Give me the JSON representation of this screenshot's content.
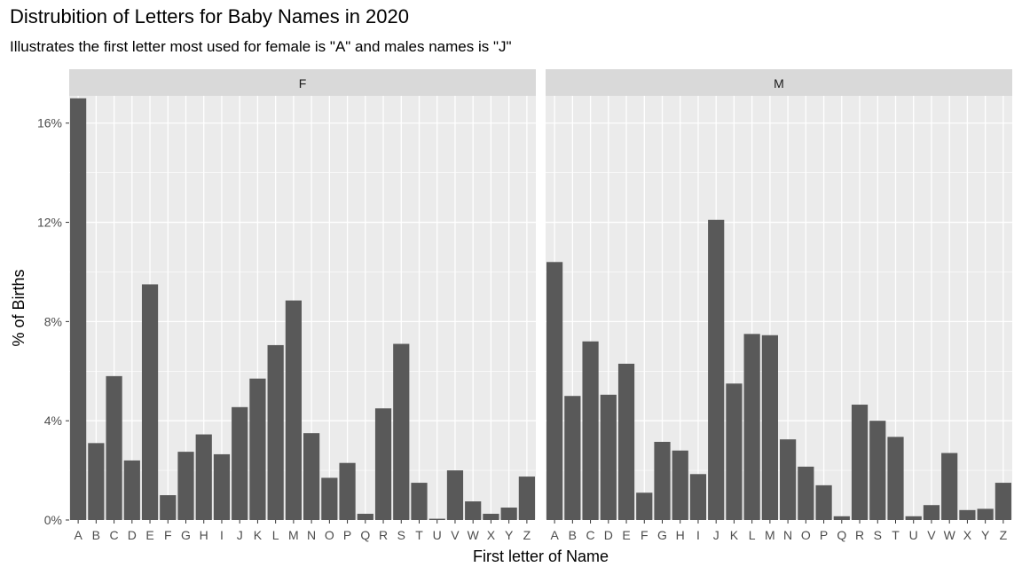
{
  "chart_data": {
    "type": "bar",
    "title": "Distrubition of Letters for Baby Names in 2020",
    "subtitle": "Illustrates the first letter most used for female is \"A\" and males names is \"J\"",
    "xlabel": "First letter of Name",
    "ylabel": "% of Births",
    "ylim": [
      0,
      17.1
    ],
    "y_ticks": [
      0,
      4,
      8,
      12,
      16
    ],
    "y_tick_labels": [
      "0%",
      "4%",
      "8%",
      "12%",
      "16%"
    ],
    "grid": true,
    "categories": [
      "A",
      "B",
      "C",
      "D",
      "E",
      "F",
      "G",
      "H",
      "I",
      "J",
      "K",
      "L",
      "M",
      "N",
      "O",
      "P",
      "Q",
      "R",
      "S",
      "T",
      "U",
      "V",
      "W",
      "X",
      "Y",
      "Z"
    ],
    "facets": [
      {
        "label": "F",
        "values": [
          17.0,
          3.1,
          5.8,
          2.4,
          9.5,
          1.0,
          2.75,
          3.45,
          2.65,
          4.55,
          5.7,
          7.05,
          8.85,
          3.5,
          1.7,
          2.3,
          0.25,
          4.5,
          7.1,
          1.5,
          0.05,
          2.0,
          0.75,
          0.25,
          0.5,
          1.75
        ],
        "note": ""
      },
      {
        "label": "M",
        "values": [
          10.4,
          5.0,
          7.2,
          5.05,
          6.3,
          1.1,
          3.15,
          2.8,
          1.85,
          12.1,
          5.5,
          7.5,
          7.45,
          3.25,
          2.15,
          1.4,
          0.15,
          4.65,
          4.0,
          3.35,
          0.15,
          0.6,
          2.7,
          0.4,
          0.45,
          1.5
        ]
      }
    ],
    "colors": {
      "panel_bg": "#ebebeb",
      "strip_bg": "#d9d9d9",
      "grid": "#ffffff",
      "bar": "#595959",
      "tick_text": "#4d4d4d"
    }
  }
}
